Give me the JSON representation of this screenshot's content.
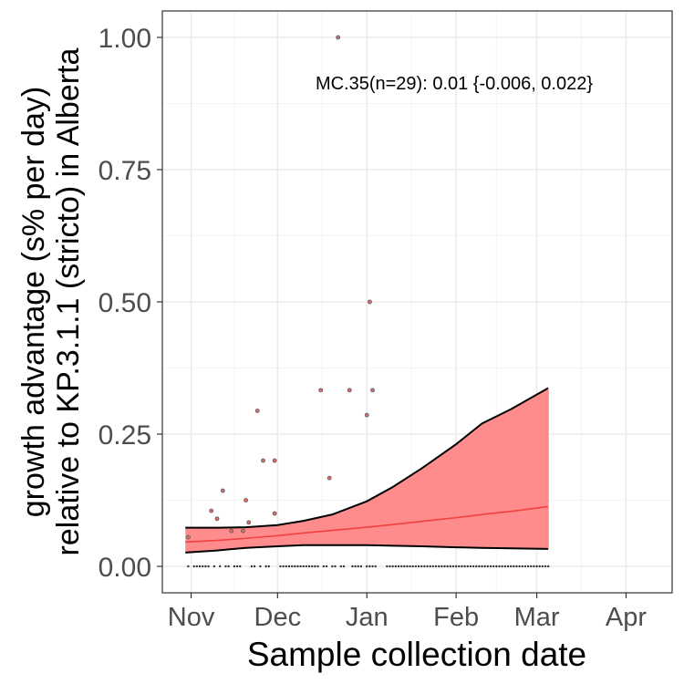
{
  "chart_data": {
    "type": "scatter",
    "annotation": "MC.35(n=29): 0.01 {-0.006, 0.022}",
    "xlabel": "Sample collection date",
    "ylabel_lines": [
      "growth advantage (s% per day)",
      "relative to KP.3.1.1 (stricto) in Alberta"
    ],
    "x_ticks": [
      {
        "label": "Nov",
        "date": "2024-11-01"
      },
      {
        "label": "Dec",
        "date": "2024-12-01"
      },
      {
        "label": "Jan",
        "date": "2025-01-01"
      },
      {
        "label": "Feb",
        "date": "2025-02-01"
      },
      {
        "label": "Mar",
        "date": "2025-03-01"
      },
      {
        "label": "Apr",
        "date": "2025-04-01"
      }
    ],
    "y_ticks": [
      {
        "label": "0.00",
        "value": 0
      },
      {
        "label": "0.25",
        "value": 0.25
      },
      {
        "label": "0.50",
        "value": 0.5
      },
      {
        "label": "0.75",
        "value": 0.75
      },
      {
        "label": "1.00",
        "value": 1
      }
    ],
    "xlim": [
      "2024-10-22",
      "2025-04-17"
    ],
    "ylim": [
      -0.05,
      1.05
    ],
    "grid": true,
    "points": [
      {
        "date": "2024-10-31",
        "y": 0.055
      },
      {
        "date": "2024-11-08",
        "y": 0.105
      },
      {
        "date": "2024-11-10",
        "y": 0.09
      },
      {
        "date": "2024-11-12",
        "y": 0.143
      },
      {
        "date": "2024-11-15",
        "y": 0.067
      },
      {
        "date": "2024-11-19",
        "y": 0.067
      },
      {
        "date": "2024-11-20",
        "y": 0.125
      },
      {
        "date": "2024-11-21",
        "y": 0.083
      },
      {
        "date": "2024-11-24",
        "y": 0.294
      },
      {
        "date": "2024-11-26",
        "y": 0.2
      },
      {
        "date": "2024-11-30",
        "y": 0.1
      },
      {
        "date": "2024-11-30",
        "y": 0.2
      },
      {
        "date": "2024-12-16",
        "y": 0.333
      },
      {
        "date": "2024-12-19",
        "y": 0.167
      },
      {
        "date": "2024-12-22",
        "y": 1.0
      },
      {
        "date": "2024-12-26",
        "y": 0.333
      },
      {
        "date": "2025-01-01",
        "y": 0.286
      },
      {
        "date": "2025-01-02",
        "y": 0.5
      },
      {
        "date": "2025-01-03",
        "y": 0.333
      }
    ],
    "zero_point_dates": [
      "2024-10-31",
      "2024-11-02",
      "2024-11-03",
      "2024-11-04",
      "2024-11-05",
      "2024-11-06",
      "2024-11-07",
      "2024-11-09",
      "2024-11-11",
      "2024-11-13",
      "2024-11-14",
      "2024-11-16",
      "2024-11-17",
      "2024-11-18",
      "2024-11-22",
      "2024-11-23",
      "2024-11-25",
      "2024-11-27",
      "2024-11-28",
      "2024-12-02",
      "2024-12-03",
      "2024-12-04",
      "2024-12-05",
      "2024-12-06",
      "2024-12-07",
      "2024-12-08",
      "2024-12-09",
      "2024-12-10",
      "2024-12-11",
      "2024-12-12",
      "2024-12-13",
      "2024-12-14",
      "2024-12-15",
      "2024-12-17",
      "2024-12-18",
      "2024-12-20",
      "2024-12-21",
      "2024-12-23",
      "2024-12-24",
      "2024-12-27",
      "2024-12-28",
      "2024-12-29",
      "2024-12-30",
      "2025-01-01",
      "2025-01-02",
      "2025-01-03",
      "2025-01-04",
      "2025-01-08",
      "2025-01-09",
      "2025-01-10",
      "2025-01-11",
      "2025-01-12",
      "2025-01-13",
      "2025-01-14",
      "2025-01-15",
      "2025-01-16",
      "2025-01-17",
      "2025-01-18",
      "2025-01-19",
      "2025-01-20",
      "2025-01-21",
      "2025-01-22",
      "2025-01-23",
      "2025-01-24",
      "2025-01-25",
      "2025-01-26",
      "2025-01-27",
      "2025-01-28",
      "2025-01-29",
      "2025-01-30",
      "2025-01-31",
      "2025-02-01",
      "2025-02-02",
      "2025-02-03",
      "2025-02-04",
      "2025-02-05",
      "2025-02-06",
      "2025-02-07",
      "2025-02-08",
      "2025-02-09",
      "2025-02-10",
      "2025-02-11",
      "2025-02-12",
      "2025-02-13",
      "2025-02-14",
      "2025-02-15",
      "2025-02-16",
      "2025-02-17",
      "2025-02-18",
      "2025-02-19",
      "2025-02-20",
      "2025-02-21",
      "2025-02-22",
      "2025-02-23",
      "2025-02-24",
      "2025-02-25",
      "2025-02-26",
      "2025-02-27",
      "2025-02-28",
      "2025-03-01",
      "2025-03-02",
      "2025-03-03",
      "2025-03-04",
      "2025-03-05"
    ],
    "fit": {
      "dates": [
        "2024-10-30",
        "2024-11-10",
        "2024-11-20",
        "2024-12-01",
        "2024-12-10",
        "2024-12-20",
        "2025-01-01",
        "2025-01-10",
        "2025-01-20",
        "2025-02-01",
        "2025-02-10",
        "2025-02-20",
        "2025-03-05"
      ],
      "mean": [
        0.046,
        0.049,
        0.053,
        0.058,
        0.063,
        0.068,
        0.074,
        0.079,
        0.085,
        0.092,
        0.098,
        0.104,
        0.113
      ],
      "lower": [
        0.026,
        0.03,
        0.035,
        0.038,
        0.04,
        0.04,
        0.04,
        0.039,
        0.038,
        0.036,
        0.035,
        0.034,
        0.033
      ],
      "upper": [
        0.073,
        0.073,
        0.074,
        0.078,
        0.086,
        0.098,
        0.123,
        0.15,
        0.185,
        0.231,
        0.27,
        0.297,
        0.337
      ]
    },
    "colors": {
      "ribbon": "#ff7f7f",
      "fit_line": "#f04040",
      "band_border": "#000000",
      "point_fill": "#e26f6f",
      "grid_major": "#ebebeb",
      "grid_minor": "#f4f4f4",
      "tick_text": "#4d4d4d"
    }
  }
}
